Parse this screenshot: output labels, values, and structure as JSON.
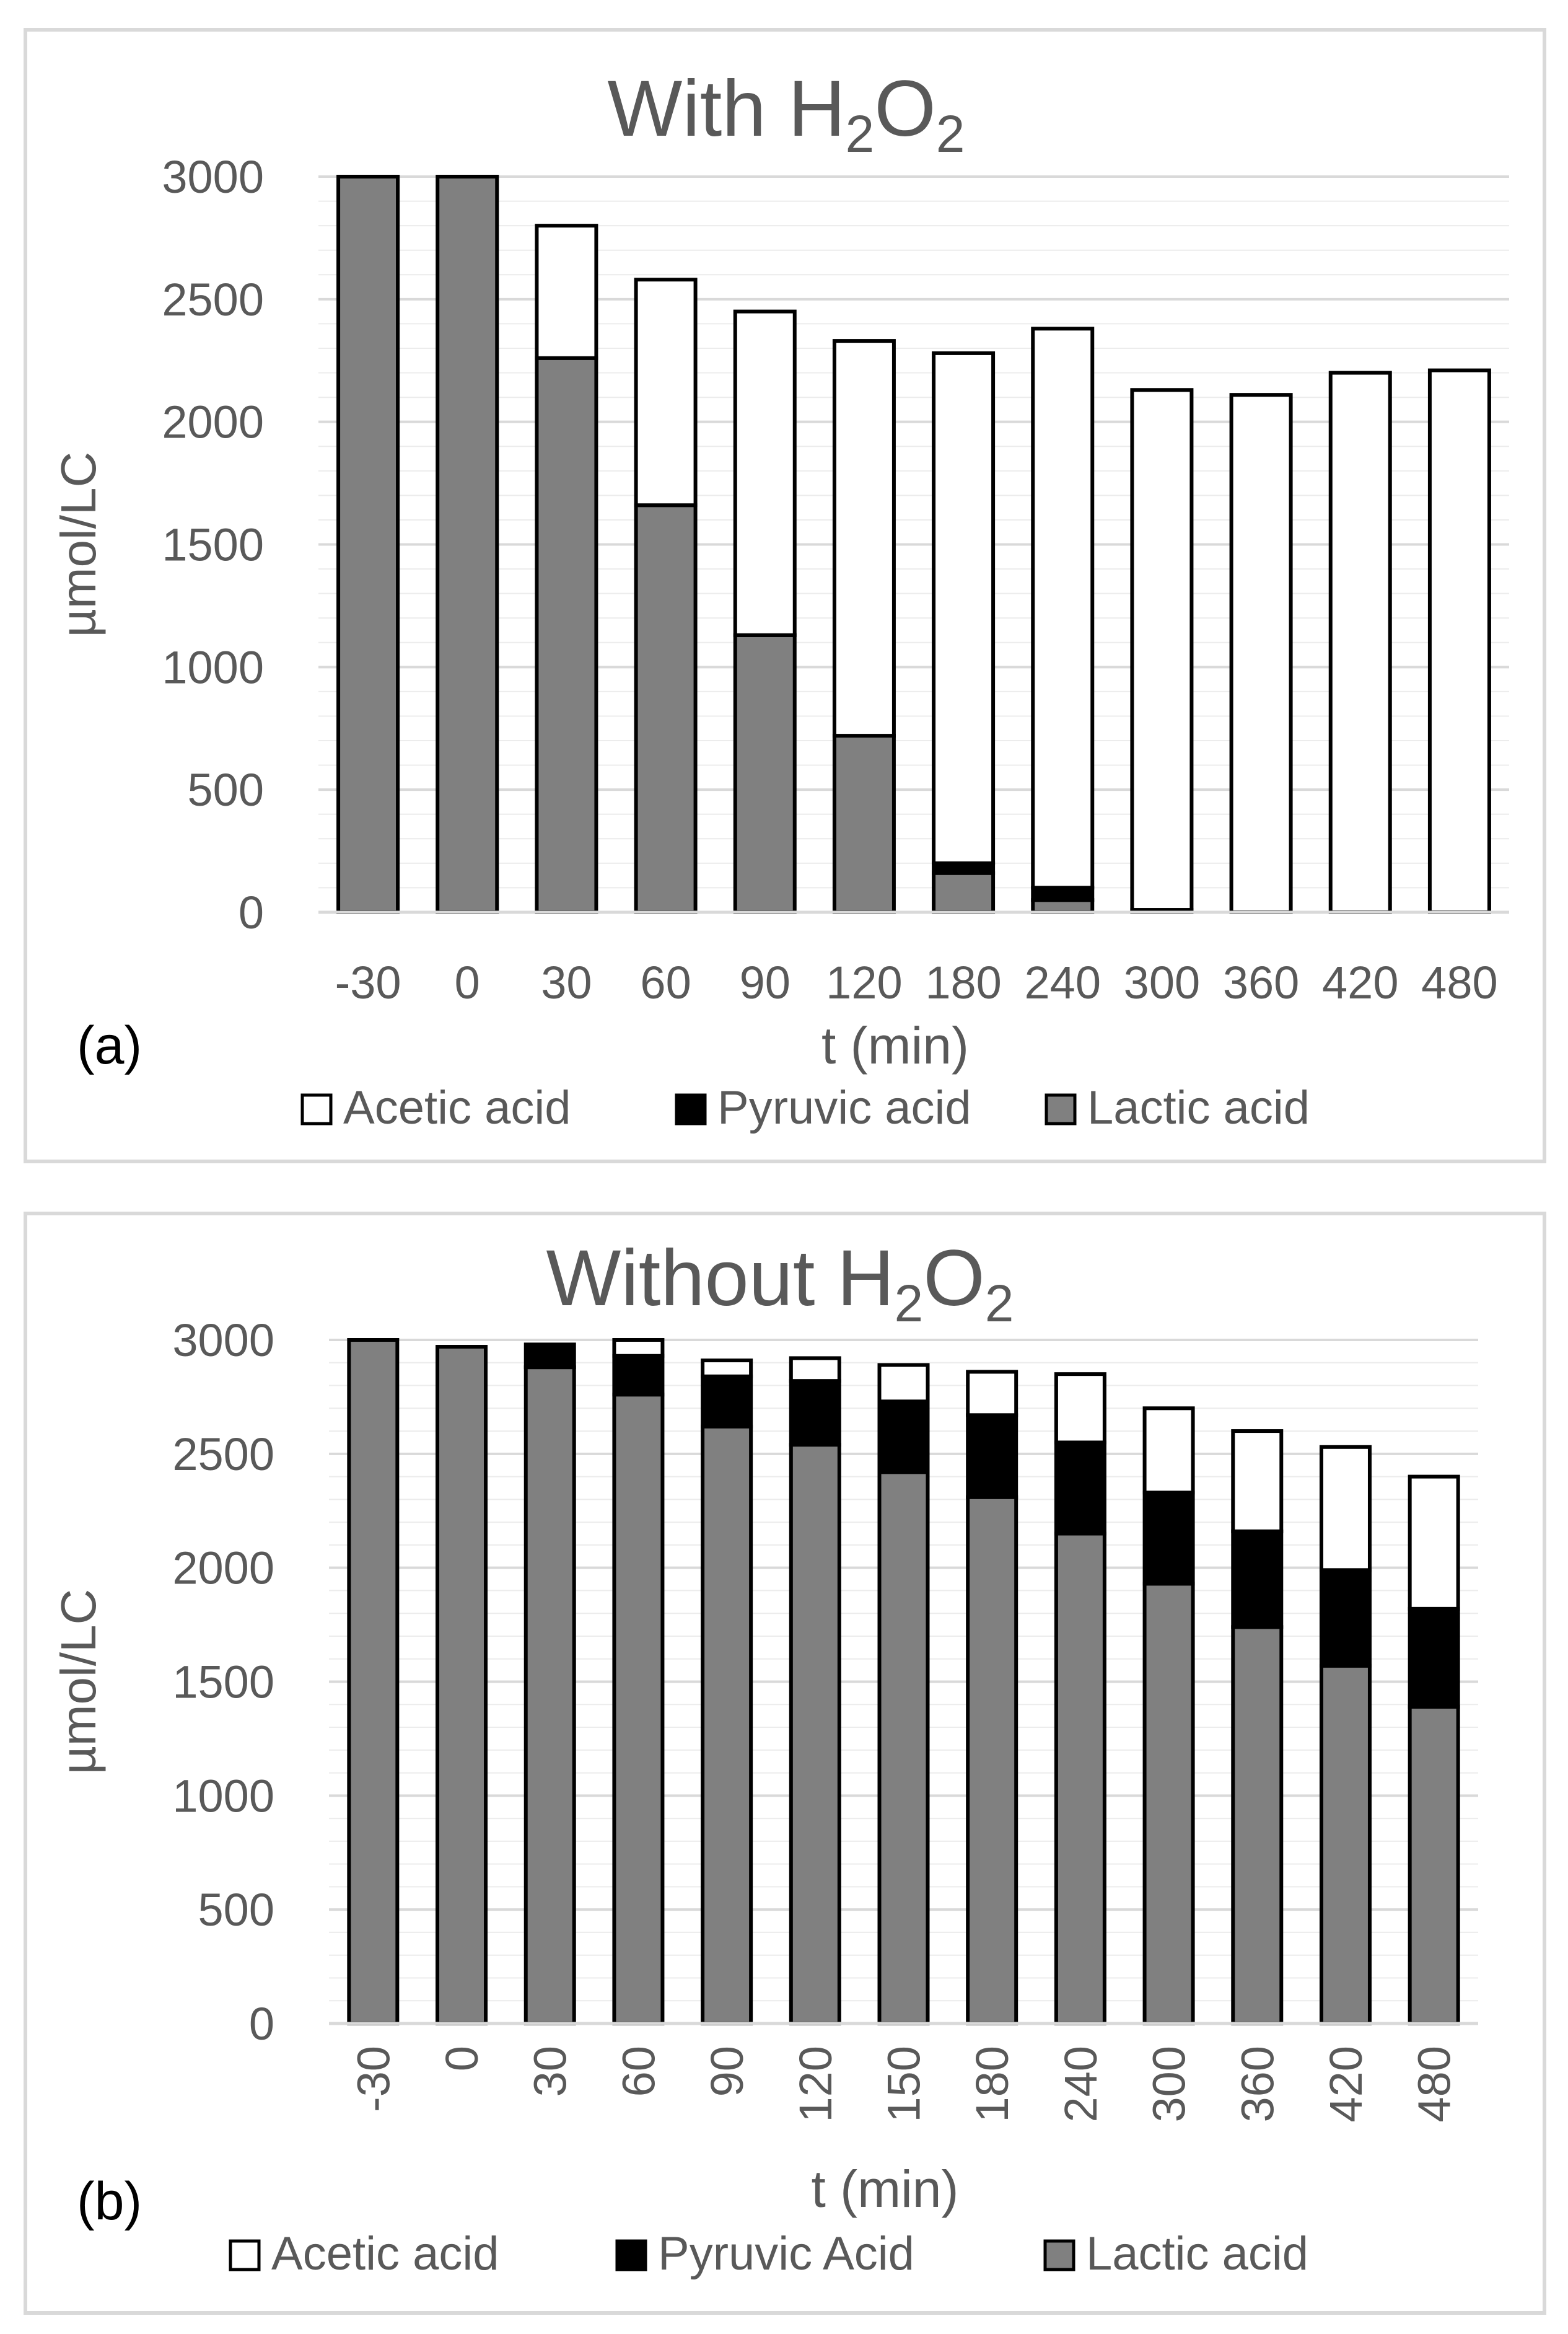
{
  "colors": {
    "acetic": "#ffffff",
    "pyruvic": "#000000",
    "lactic": "#808080",
    "text": "#595959",
    "grid": "#d9d9d9"
  },
  "chart_data": [
    {
      "type": "bar",
      "stacked": true,
      "panel_label": "(a)",
      "title": {
        "main": "With H",
        "sub1": "2",
        "mid": "O",
        "sub2": "2"
      },
      "xlabel": "t (min)",
      "ylabel": "µmol/LC",
      "ylim": [
        0,
        3000
      ],
      "ytick_labels": [
        "0",
        "500",
        "1000",
        "1500",
        "2000",
        "2500",
        "3000"
      ],
      "categories": [
        "-30",
        "0",
        "30",
        "60",
        "90",
        "120",
        "180",
        "240",
        "300",
        "360",
        "420",
        "480"
      ],
      "legend": [
        "Acetic acid",
        "Pyruvic acid",
        "Lactic acid"
      ],
      "legend_position": "bottom",
      "series": [
        {
          "name": "Lactic acid",
          "color": "lactic",
          "values": [
            3000,
            3000,
            2260,
            1660,
            1130,
            720,
            160,
            50,
            0,
            0,
            0,
            0
          ]
        },
        {
          "name": "Pyruvic acid",
          "color": "pyruvic",
          "values": [
            0,
            0,
            0,
            0,
            0,
            0,
            40,
            50,
            10,
            0,
            0,
            0
          ]
        },
        {
          "name": "Acetic acid",
          "color": "acetic",
          "values": [
            0,
            0,
            540,
            920,
            1320,
            1610,
            2080,
            2280,
            2120,
            2110,
            2200,
            2210
          ]
        }
      ]
    },
    {
      "type": "bar",
      "stacked": true,
      "panel_label": "(b)",
      "title": {
        "main": "Without H",
        "sub1": "2",
        "mid": "O",
        "sub2": "2"
      },
      "xlabel": "t (min)",
      "ylabel": "µmol/LC",
      "ylim": [
        0,
        3000
      ],
      "ytick_labels": [
        "0",
        "500",
        "1000",
        "1500",
        "2000",
        "2500",
        "3000"
      ],
      "categories": [
        "-30",
        "0",
        "30",
        "60",
        "90",
        "120",
        "150",
        "180",
        "240",
        "300",
        "360",
        "420",
        "480"
      ],
      "legend": [
        "Acetic acid",
        "Pyruvic Acid",
        "Lactic acid"
      ],
      "legend_position": "bottom",
      "series": [
        {
          "name": "Lactic acid",
          "color": "lactic",
          "values": [
            3000,
            2970,
            2880,
            2760,
            2620,
            2540,
            2420,
            2310,
            2150,
            1930,
            1740,
            1570,
            1390
          ]
        },
        {
          "name": "Pyruvic Acid",
          "color": "pyruvic",
          "values": [
            0,
            0,
            100,
            170,
            220,
            280,
            310,
            360,
            400,
            400,
            420,
            420,
            430
          ]
        },
        {
          "name": "Acetic acid",
          "color": "acetic",
          "values": [
            0,
            0,
            0,
            70,
            70,
            100,
            160,
            190,
            300,
            370,
            440,
            540,
            580
          ]
        }
      ]
    }
  ]
}
